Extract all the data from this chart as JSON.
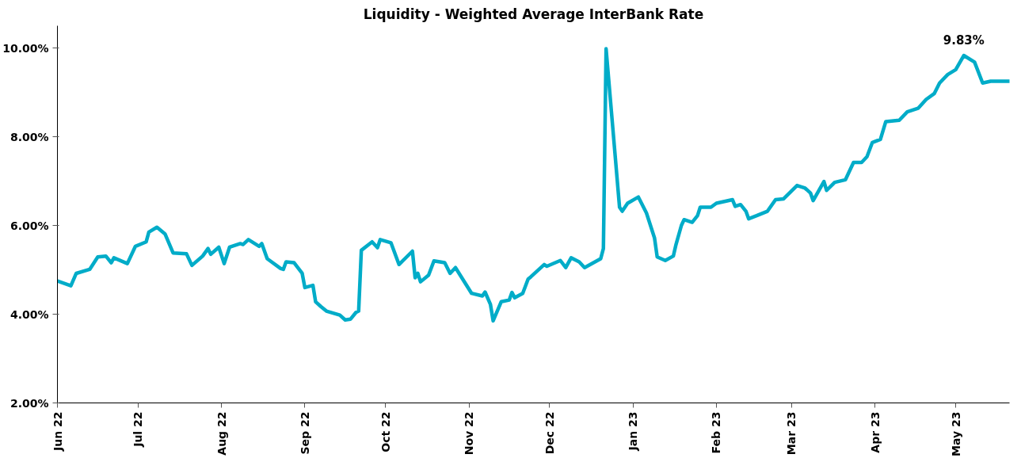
{
  "chart_data": {
    "type": "line",
    "title": "Liquidity - Weighted Average InterBank Rate",
    "x": [
      "2022-06-01",
      "2022-06-06",
      "2022-06-08",
      "2022-06-13",
      "2022-06-16",
      "2022-06-19",
      "2022-06-21",
      "2022-06-22",
      "2022-06-27",
      "2022-06-30",
      "2022-07-04",
      "2022-07-05",
      "2022-07-08",
      "2022-07-11",
      "2022-07-14",
      "2022-07-19",
      "2022-07-21",
      "2022-07-25",
      "2022-07-27",
      "2022-07-28",
      "2022-07-31",
      "2022-08-02",
      "2022-08-04",
      "2022-08-08",
      "2022-08-09",
      "2022-08-11",
      "2022-08-15",
      "2022-08-16",
      "2022-08-18",
      "2022-08-23",
      "2022-08-24",
      "2022-08-25",
      "2022-08-28",
      "2022-08-31",
      "2022-09-01",
      "2022-09-04",
      "2022-09-05",
      "2022-09-07",
      "2022-09-09",
      "2022-09-14",
      "2022-09-16",
      "2022-09-18",
      "2022-09-20",
      "2022-09-21",
      "2022-09-22",
      "2022-09-26",
      "2022-09-28",
      "2022-09-29",
      "2022-10-03",
      "2022-10-06",
      "2022-10-11",
      "2022-10-12",
      "2022-10-13",
      "2022-10-14",
      "2022-10-17",
      "2022-10-19",
      "2022-10-23",
      "2022-10-25",
      "2022-10-27",
      "2022-11-02",
      "2022-11-06",
      "2022-11-07",
      "2022-11-09",
      "2022-11-10",
      "2022-11-13",
      "2022-11-16",
      "2022-11-17",
      "2022-11-18",
      "2022-11-21",
      "2022-11-23",
      "2022-11-24",
      "2022-11-29",
      "2022-11-30",
      "2022-12-05",
      "2022-12-07",
      "2022-12-09",
      "2022-12-11",
      "2022-12-12",
      "2022-12-14",
      "2022-12-20",
      "2022-12-21",
      "2022-12-22",
      "2022-12-27",
      "2022-12-28",
      "2022-12-30",
      "2023-01-03",
      "2023-01-06",
      "2023-01-09",
      "2023-01-10",
      "2023-01-13",
      "2023-01-16",
      "2023-01-17",
      "2023-01-19",
      "2023-01-20",
      "2023-01-23",
      "2023-01-25",
      "2023-01-26",
      "2023-01-30",
      "2023-02-01",
      "2023-02-07",
      "2023-02-08",
      "2023-02-10",
      "2023-02-12",
      "2023-02-13",
      "2023-02-16",
      "2023-02-20",
      "2023-02-23",
      "2023-02-26",
      "2023-03-03",
      "2023-03-06",
      "2023-03-08",
      "2023-03-09",
      "2023-03-13",
      "2023-03-14",
      "2023-03-17",
      "2023-03-21",
      "2023-03-24",
      "2023-03-27",
      "2023-03-29",
      "2023-03-31",
      "2023-04-03",
      "2023-04-05",
      "2023-04-10",
      "2023-04-13",
      "2023-04-17",
      "2023-04-20",
      "2023-04-23",
      "2023-04-25",
      "2023-04-28",
      "2023-05-01",
      "2023-05-04",
      "2023-05-08",
      "2023-05-11",
      "2023-05-14",
      "2023-05-21"
    ],
    "series": [
      {
        "color": "#00acc8",
        "values": [
          4.75,
          4.64,
          4.92,
          5.01,
          5.29,
          5.31,
          5.16,
          5.27,
          5.14,
          5.53,
          5.63,
          5.85,
          5.96,
          5.81,
          5.38,
          5.36,
          5.1,
          5.31,
          5.48,
          5.35,
          5.51,
          5.14,
          5.51,
          5.59,
          5.57,
          5.68,
          5.53,
          5.59,
          5.25,
          5.03,
          5.01,
          5.18,
          5.16,
          4.92,
          4.6,
          4.65,
          4.28,
          4.17,
          4.07,
          3.98,
          3.87,
          3.89,
          4.04,
          4.07,
          5.44,
          5.63,
          5.5,
          5.68,
          5.61,
          5.12,
          5.42,
          4.82,
          4.92,
          4.73,
          4.88,
          5.2,
          5.16,
          4.92,
          5.05,
          4.47,
          4.41,
          4.5,
          4.22,
          3.85,
          4.28,
          4.32,
          4.49,
          4.37,
          4.47,
          4.79,
          4.84,
          5.12,
          5.08,
          5.21,
          5.05,
          5.27,
          5.21,
          5.18,
          5.05,
          5.25,
          5.48,
          9.98,
          6.41,
          6.32,
          6.5,
          6.64,
          6.28,
          5.72,
          5.29,
          5.21,
          5.31,
          5.57,
          6.0,
          6.13,
          6.07,
          6.22,
          6.41,
          6.41,
          6.5,
          6.58,
          6.43,
          6.47,
          6.32,
          6.15,
          6.22,
          6.32,
          6.58,
          6.6,
          6.9,
          6.84,
          6.73,
          6.56,
          6.99,
          6.79,
          6.97,
          7.03,
          7.42,
          7.42,
          7.55,
          7.87,
          7.94,
          8.34,
          8.37,
          8.56,
          8.64,
          8.84,
          8.97,
          9.21,
          9.4,
          9.51,
          9.83,
          9.68,
          9.21,
          9.25,
          9.25
        ]
      }
    ],
    "xlim": [
      "2022-06-01",
      "2023-05-21"
    ],
    "xticks": [
      {
        "value": "2022-06-01",
        "label": "Jun 22"
      },
      {
        "value": "2022-07-01",
        "label": "Jul 22"
      },
      {
        "value": "2022-08-01",
        "label": "Aug 22"
      },
      {
        "value": "2022-09-01",
        "label": "Sep 22"
      },
      {
        "value": "2022-10-01",
        "label": "Oct 22"
      },
      {
        "value": "2022-11-01",
        "label": "Nov 22"
      },
      {
        "value": "2022-12-01",
        "label": "Dec 22"
      },
      {
        "value": "2023-01-01",
        "label": "Jan 23"
      },
      {
        "value": "2023-02-01",
        "label": "Feb 23"
      },
      {
        "value": "2023-03-01",
        "label": "Mar 23"
      },
      {
        "value": "2023-04-01",
        "label": "Apr 23"
      },
      {
        "value": "2023-05-01",
        "label": "May 23"
      }
    ],
    "ylim": [
      2,
      10.5
    ],
    "yticks": [
      {
        "value": 2,
        "label": "2.00%"
      },
      {
        "value": 4,
        "label": "4.00%"
      },
      {
        "value": 6,
        "label": "6.00%"
      },
      {
        "value": 8,
        "label": "8.00%"
      },
      {
        "value": 10,
        "label": "10.00%"
      }
    ],
    "annotations": [
      {
        "text": "9.83%",
        "x": "2023-05-04",
        "y": 9.83
      }
    ],
    "grid": false,
    "marker": "none",
    "line_style": "solid"
  }
}
